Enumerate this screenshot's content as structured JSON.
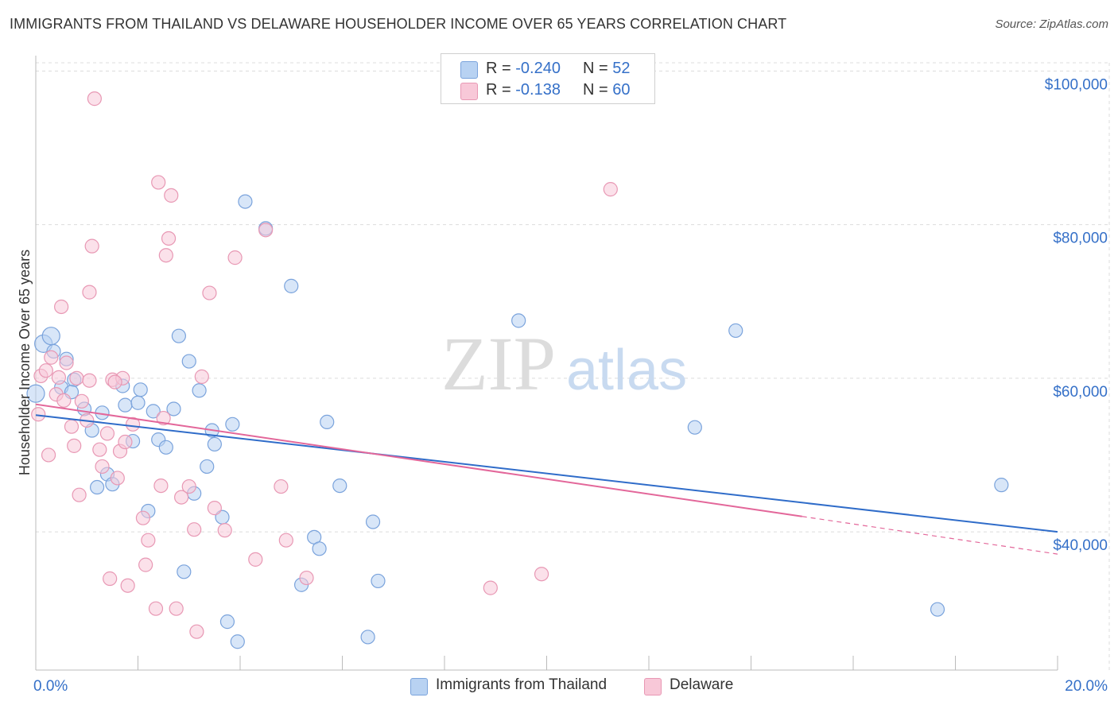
{
  "title": "IMMIGRANTS FROM THAILAND VS DELAWARE HOUSEHOLDER INCOME OVER 65 YEARS CORRELATION CHART",
  "source": "Source: ZipAtlas.com",
  "watermark": {
    "zip": "ZIP",
    "atlas": "atlas"
  },
  "legend": {
    "rows": [
      {
        "r_label": "R =",
        "r_value": "-0.240",
        "n_label": "N =",
        "n_value": "52"
      },
      {
        "r_label": "R =",
        "r_value": "-0.138",
        "n_label": "N =",
        "n_value": "60"
      }
    ]
  },
  "bottom_legend": [
    {
      "label": "Immigrants from Thailand"
    },
    {
      "label": "Delaware"
    }
  ],
  "chart_data": {
    "type": "scatter",
    "title": "IMMIGRANTS FROM THAILAND VS DELAWARE HOUSEHOLDER INCOME OVER 65 YEARS CORRELATION CHART",
    "xlabel": "",
    "ylabel": "Householder Income Over 65 years",
    "xlim": [
      0,
      20
    ],
    "ylim": [
      22000,
      102000
    ],
    "x_tick_labels": [
      "0.0%",
      "20.0%"
    ],
    "y_ticks": [
      40000,
      60000,
      80000,
      100000
    ],
    "y_tick_labels": [
      "$40,000",
      "$60,000",
      "$80,000",
      "$100,000"
    ],
    "grid": true,
    "colors": {
      "series1_fill": "#b8d2f2",
      "series1_stroke": "#7aa3dc",
      "series1_line": "#2f6cc9",
      "series2_fill": "#f8c8d8",
      "series2_stroke": "#e898b4",
      "series2_line": "#e3679a",
      "axis_text": "#3570c8",
      "grid": "#dcdcdc"
    },
    "series": [
      {
        "name": "Immigrants from Thailand",
        "r": -0.24,
        "n": 52,
        "trend": {
          "x0": 0.0,
          "y0": 55200,
          "x1": 20.0,
          "y1": 40000
        },
        "points": [
          [
            0.0,
            58000
          ],
          [
            0.15,
            64500
          ],
          [
            0.3,
            65500
          ],
          [
            0.35,
            63500
          ],
          [
            0.6,
            62500
          ],
          [
            0.75,
            59800
          ],
          [
            0.5,
            58800
          ],
          [
            0.7,
            58200
          ],
          [
            0.95,
            56000
          ],
          [
            1.1,
            53200
          ],
          [
            1.3,
            55500
          ],
          [
            1.2,
            45800
          ],
          [
            1.4,
            47500
          ],
          [
            1.5,
            46200
          ],
          [
            1.7,
            59000
          ],
          [
            1.75,
            56500
          ],
          [
            1.9,
            51800
          ],
          [
            2.0,
            56800
          ],
          [
            2.05,
            58500
          ],
          [
            2.2,
            42700
          ],
          [
            2.3,
            55700
          ],
          [
            2.4,
            52000
          ],
          [
            2.55,
            51000
          ],
          [
            2.7,
            56000
          ],
          [
            2.8,
            65500
          ],
          [
            2.9,
            34800
          ],
          [
            3.0,
            62200
          ],
          [
            3.1,
            45000
          ],
          [
            3.2,
            58400
          ],
          [
            3.35,
            48500
          ],
          [
            3.45,
            53200
          ],
          [
            3.5,
            51400
          ],
          [
            3.65,
            41900
          ],
          [
            3.75,
            28300
          ],
          [
            3.85,
            54000
          ],
          [
            3.95,
            25700
          ],
          [
            4.1,
            83000
          ],
          [
            4.5,
            79500
          ],
          [
            5.0,
            72000
          ],
          [
            5.2,
            33100
          ],
          [
            5.45,
            39300
          ],
          [
            5.55,
            37800
          ],
          [
            5.7,
            54300
          ],
          [
            5.95,
            46000
          ],
          [
            6.5,
            26300
          ],
          [
            6.6,
            41300
          ],
          [
            6.7,
            33600
          ],
          [
            9.45,
            67500
          ],
          [
            12.9,
            53600
          ],
          [
            13.7,
            66200
          ],
          [
            17.65,
            29900
          ],
          [
            18.9,
            46100
          ]
        ]
      },
      {
        "name": "Delaware",
        "r": -0.138,
        "n": 60,
        "trend": {
          "x0": 0.0,
          "y0": 56600,
          "x1": 15.0,
          "y1": 42000,
          "dashed_to_x": 20.0,
          "dashed_to_y": 37100
        },
        "points": [
          [
            0.05,
            55300
          ],
          [
            0.1,
            60300
          ],
          [
            0.2,
            61000
          ],
          [
            0.25,
            50000
          ],
          [
            0.3,
            62700
          ],
          [
            0.4,
            57900
          ],
          [
            0.5,
            69300
          ],
          [
            0.55,
            57100
          ],
          [
            0.6,
            62000
          ],
          [
            0.7,
            53700
          ],
          [
            0.75,
            51200
          ],
          [
            0.8,
            60000
          ],
          [
            0.85,
            44800
          ],
          [
            0.9,
            57000
          ],
          [
            1.0,
            54500
          ],
          [
            1.05,
            71200
          ],
          [
            1.1,
            77200
          ],
          [
            1.15,
            96400
          ],
          [
            1.25,
            50700
          ],
          [
            1.3,
            48500
          ],
          [
            1.4,
            52800
          ],
          [
            1.45,
            33900
          ],
          [
            1.5,
            59800
          ],
          [
            1.6,
            47000
          ],
          [
            1.65,
            50500
          ],
          [
            1.7,
            60000
          ],
          [
            1.75,
            51700
          ],
          [
            1.8,
            33000
          ],
          [
            1.9,
            54000
          ],
          [
            2.1,
            41800
          ],
          [
            2.15,
            35700
          ],
          [
            2.2,
            38900
          ],
          [
            2.35,
            30000
          ],
          [
            2.4,
            85500
          ],
          [
            2.45,
            46000
          ],
          [
            2.55,
            76000
          ],
          [
            2.6,
            78200
          ],
          [
            2.65,
            83800
          ],
          [
            2.75,
            30000
          ],
          [
            2.85,
            44500
          ],
          [
            3.0,
            45900
          ],
          [
            3.1,
            40300
          ],
          [
            3.15,
            27000
          ],
          [
            3.25,
            60200
          ],
          [
            3.4,
            71100
          ],
          [
            3.5,
            43100
          ],
          [
            3.7,
            40200
          ],
          [
            3.9,
            75700
          ],
          [
            4.3,
            36400
          ],
          [
            4.5,
            79300
          ],
          [
            4.8,
            45900
          ],
          [
            4.9,
            38900
          ],
          [
            5.3,
            34000
          ],
          [
            8.9,
            32700
          ],
          [
            9.9,
            34500
          ],
          [
            11.25,
            84600
          ],
          [
            1.05,
            59700
          ],
          [
            2.5,
            54800
          ],
          [
            0.45,
            60100
          ],
          [
            1.55,
            59500
          ]
        ]
      }
    ]
  }
}
